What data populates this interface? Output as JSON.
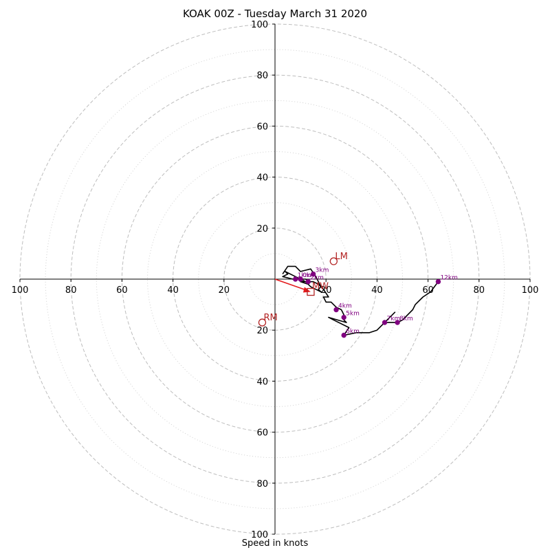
{
  "chart_data": {
    "type": "hodograph",
    "title": "KOAK 00Z - Tuesday March 31 2020",
    "xlabel": "Speed in knots",
    "ylabel": "",
    "axis_range": [
      -100,
      100
    ],
    "rings_major": [
      20,
      40,
      60,
      80,
      100
    ],
    "rings_minor": [
      10,
      30,
      50,
      70,
      90
    ],
    "ticks_x": [
      "100",
      "80",
      "60",
      "40",
      "20",
      "20",
      "40",
      "60",
      "80",
      "100"
    ],
    "ticks_x_values": [
      -100,
      -80,
      -60,
      -40,
      -20,
      20,
      40,
      60,
      80,
      100
    ],
    "ticks_y": [
      "100",
      "80",
      "60",
      "40",
      "20",
      "20",
      "40",
      "60",
      "80",
      "100"
    ],
    "ticks_y_values": [
      100,
      80,
      60,
      40,
      20,
      -20,
      -40,
      -60,
      -80,
      -100
    ],
    "grid": true,
    "hodograph_trace": [
      [
        3,
        2
      ],
      [
        5,
        5
      ],
      [
        8,
        5
      ],
      [
        10,
        3
      ],
      [
        14,
        4
      ],
      [
        16,
        1
      ],
      [
        17,
        -1
      ],
      [
        18,
        -3
      ],
      [
        17,
        -4
      ],
      [
        18,
        -5
      ],
      [
        16,
        -4
      ],
      [
        14,
        -3
      ],
      [
        12,
        -1
      ],
      [
        8,
        1
      ],
      [
        4,
        3
      ],
      [
        5,
        2
      ],
      [
        3,
        1
      ],
      [
        7,
        0
      ],
      [
        10,
        0
      ],
      [
        12,
        0
      ],
      [
        14,
        -1
      ],
      [
        13,
        -2
      ],
      [
        10,
        -1
      ],
      [
        15,
        -1
      ],
      [
        17,
        -2
      ],
      [
        19,
        -4
      ],
      [
        21,
        -7
      ],
      [
        19,
        -7
      ],
      [
        20,
        -9
      ],
      [
        22,
        -9
      ],
      [
        24,
        -11
      ],
      [
        26,
        -12
      ],
      [
        27,
        -14
      ],
      [
        27,
        -16
      ],
      [
        28,
        -17
      ],
      [
        21,
        -15
      ],
      [
        23,
        -16
      ],
      [
        29,
        -19
      ],
      [
        27,
        -22
      ],
      [
        32,
        -21
      ],
      [
        37,
        -21
      ],
      [
        40,
        -20
      ],
      [
        43,
        -17
      ],
      [
        47,
        -13
      ],
      [
        43,
        -17
      ],
      [
        48,
        -17
      ],
      [
        50,
        -16
      ],
      [
        54,
        -12
      ],
      [
        55,
        -10
      ],
      [
        58,
        -7
      ],
      [
        61,
        -5
      ],
      [
        64,
        -1
      ]
    ],
    "height_markers": [
      {
        "label": "0km",
        "u": 10,
        "v": 0
      },
      {
        "label": "1km",
        "u": 8,
        "v": 0
      },
      {
        "label": "2km",
        "u": 13,
        "v": -1
      },
      {
        "label": "3km",
        "u": 15,
        "v": 2
      },
      {
        "label": "4km",
        "u": 24,
        "v": -12
      },
      {
        "label": "5km",
        "u": 27,
        "v": -15
      },
      {
        "label": "6km",
        "u": 27,
        "v": -22
      },
      {
        "label": "7km",
        "u": 43,
        "v": -17
      },
      {
        "label": "8km",
        "u": 48,
        "v": -17
      },
      {
        "label": "12km",
        "u": 64,
        "v": -1
      }
    ],
    "storm_motion": [
      {
        "label": "LM",
        "u": 23,
        "v": 7,
        "marker": "circle"
      },
      {
        "label": "RM",
        "u": -5,
        "v": -17,
        "marker": "circle"
      },
      {
        "label": "MW",
        "u": 14,
        "v": -5,
        "marker": "square"
      }
    ],
    "storm_vector": {
      "from": [
        0,
        0
      ],
      "to": [
        14,
        -5
      ]
    },
    "colors": {
      "trace": "#000000",
      "markers": "#800080",
      "storm": "#b22222",
      "vector": "#e31a1c",
      "grid": "#bdbdbd",
      "axis": "#000000"
    }
  }
}
